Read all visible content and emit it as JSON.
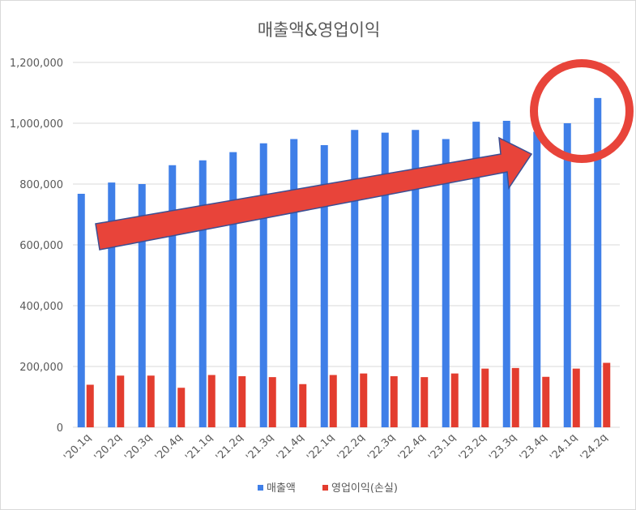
{
  "chart_data": {
    "type": "bar",
    "title": "매출액&영업이익",
    "categories": [
      "'20.1q",
      "'20.2q",
      "'20.3q",
      "'20.4q",
      "'21.1q",
      "'21.2q",
      "'21.3q",
      "'21.4q",
      "'22.1q",
      "'22.2q",
      "'22.3q",
      "'22.4q",
      "'23.1q",
      "'23.2q",
      "'23.3q",
      "'23.4q",
      "'24.1q",
      "'24.2q"
    ],
    "series": [
      {
        "name": "매출액",
        "color": "#3f7fe8",
        "values": [
          768000,
          805000,
          800000,
          862000,
          878000,
          905000,
          934000,
          948000,
          928000,
          978000,
          969000,
          978000,
          948000,
          1005000,
          1008000,
          972000,
          1000000,
          1083000
        ]
      },
      {
        "name": "영업이익(손실)",
        "color": "#e33d2f",
        "values": [
          140000,
          170000,
          170000,
          130000,
          172000,
          168000,
          165000,
          142000,
          172000,
          177000,
          168000,
          165000,
          177000,
          193000,
          195000,
          166000,
          193000,
          212000
        ]
      }
    ],
    "yticks": [
      "0",
      "200,000",
      "400,000",
      "600,000",
      "800,000",
      "1,000,000",
      "1,200,000"
    ],
    "ylim": [
      0,
      1200000
    ],
    "grid": true,
    "legend": "bottom",
    "annotations": [
      {
        "type": "arrow",
        "color": "#e8443a",
        "direction": "up-right",
        "from": "'20.1q",
        "to": "'23.4q"
      },
      {
        "type": "circle",
        "color": "#e8443a",
        "around": "'24.2q"
      }
    ]
  }
}
